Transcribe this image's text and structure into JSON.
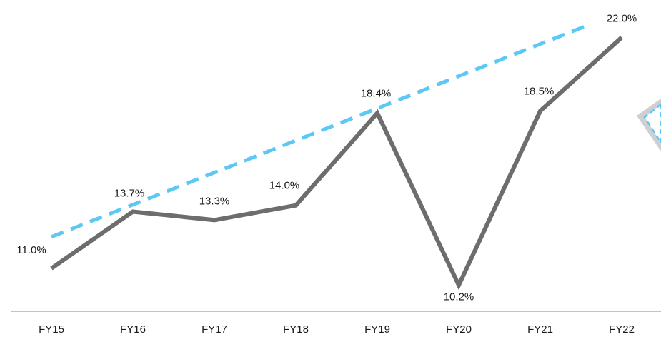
{
  "chart_data": {
    "type": "line",
    "categories": [
      "FY15",
      "FY16",
      "FY17",
      "FY18",
      "FY19",
      "FY20",
      "FY21",
      "FY22"
    ],
    "series": [
      {
        "values": [
          11.0,
          13.7,
          13.3,
          14.0,
          18.4,
          10.2,
          18.5,
          22.0
        ],
        "labels": [
          "11.0%",
          "13.7%",
          "13.3%",
          "14.0%",
          "18.4%",
          "10.2%",
          "18.5%",
          "22.0%"
        ],
        "color": "#6d6d6d",
        "style": "solid"
      }
    ],
    "trendline": {
      "values": [
        12.5,
        22.6
      ],
      "color": "#5bc8f5",
      "style": "dashed"
    },
    "ylim": [
      9.4,
      23.0
    ],
    "grid": false,
    "legend": "none",
    "title": "",
    "xlabel": "",
    "ylabel": ""
  }
}
